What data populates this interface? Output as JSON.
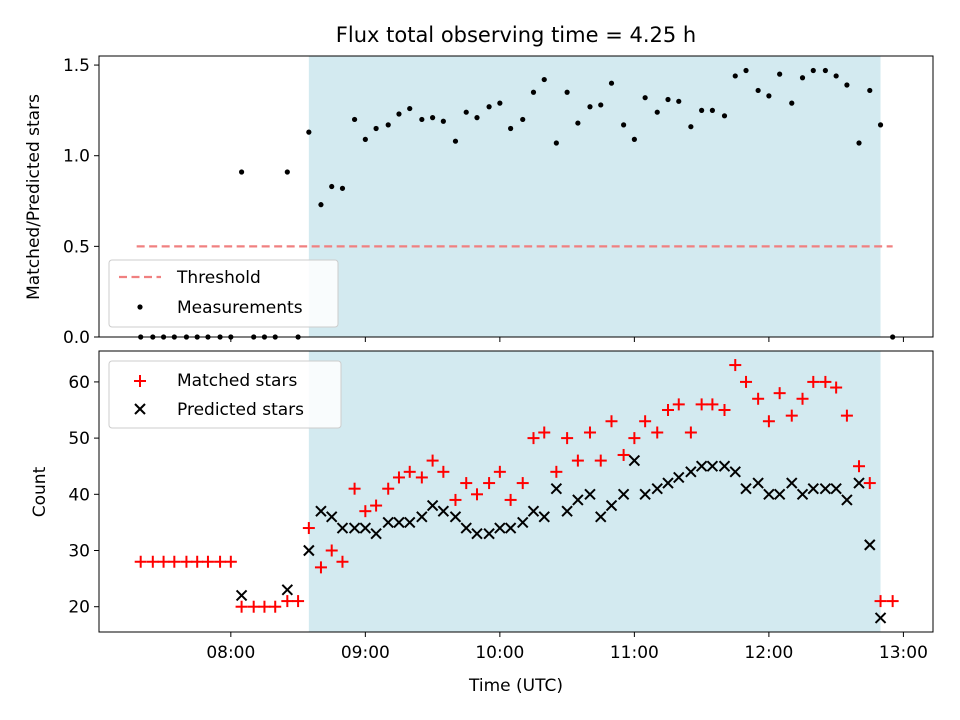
{
  "chart_data": [
    {
      "type": "scatter",
      "title": "Flux total observing time = 4.25 h",
      "ylabel": "Matched/Predicted stars",
      "xlabel": "",
      "xlim": [
        7.02,
        13.22
      ],
      "ylim": [
        0,
        1.55
      ],
      "x_ticks": [
        8,
        9,
        10,
        11,
        12,
        13
      ],
      "y_ticks": [
        0,
        0.5,
        1.0,
        1.5
      ],
      "y_tick_labels": [
        "0.0",
        "0.5",
        "1.0",
        "1.5"
      ],
      "shaded_interval": [
        8.58,
        12.83
      ],
      "shade_color": "#d3eaf0",
      "threshold": {
        "name": "Threshold",
        "value": 0.5,
        "x_range": [
          7.3,
          12.92
        ],
        "color": "#f08080"
      },
      "legend": {
        "position": "lower-left",
        "entries": [
          "Threshold",
          "Measurements"
        ]
      },
      "series": [
        {
          "name": "Measurements",
          "marker": "dot",
          "color": "#000000",
          "x": [
            7.33,
            7.42,
            7.5,
            7.58,
            7.67,
            7.75,
            7.83,
            7.92,
            8.0,
            8.08,
            8.17,
            8.25,
            8.33,
            8.42,
            8.5,
            8.58,
            8.67,
            8.75,
            8.83,
            8.92,
            9.0,
            9.08,
            9.17,
            9.25,
            9.33,
            9.42,
            9.5,
            9.58,
            9.67,
            9.75,
            9.83,
            9.92,
            10.0,
            10.08,
            10.17,
            10.25,
            10.33,
            10.42,
            10.5,
            10.58,
            10.67,
            10.75,
            10.83,
            10.92,
            11.0,
            11.08,
            11.17,
            11.25,
            11.33,
            11.42,
            11.5,
            11.58,
            11.67,
            11.75,
            11.83,
            11.92,
            12.0,
            12.08,
            12.17,
            12.25,
            12.33,
            12.42,
            12.5,
            12.58,
            12.67,
            12.75,
            12.83,
            12.92
          ],
          "y": [
            0,
            0,
            0,
            0,
            0,
            0,
            0,
            0,
            0,
            0.91,
            0,
            0,
            0,
            0.91,
            0,
            1.13,
            0.73,
            0.83,
            0.82,
            1.2,
            1.09,
            1.15,
            1.17,
            1.23,
            1.26,
            1.2,
            1.21,
            1.19,
            1.08,
            1.24,
            1.21,
            1.27,
            1.29,
            1.15,
            1.2,
            1.35,
            1.42,
            1.07,
            1.35,
            1.18,
            1.27,
            1.28,
            1.4,
            1.17,
            1.09,
            1.32,
            1.24,
            1.31,
            1.3,
            1.16,
            1.25,
            1.25,
            1.22,
            1.44,
            1.47,
            1.36,
            1.33,
            1.45,
            1.29,
            1.43,
            1.47,
            1.47,
            1.44,
            1.39,
            1.07,
            1.36,
            1.17,
            0
          ]
        }
      ]
    },
    {
      "type": "scatter",
      "title": "",
      "ylabel": "Count",
      "xlabel": "Time (UTC)",
      "xlim": [
        7.02,
        13.22
      ],
      "ylim": [
        15.5,
        65.5
      ],
      "x_ticks": [
        8,
        9,
        10,
        11,
        12,
        13
      ],
      "x_tick_labels": [
        "08:00",
        "09:00",
        "10:00",
        "11:00",
        "12:00",
        "13:00"
      ],
      "y_ticks": [
        20,
        30,
        40,
        50,
        60
      ],
      "y_tick_labels": [
        "20",
        "30",
        "40",
        "50",
        "60"
      ],
      "shaded_interval": [
        8.58,
        12.83
      ],
      "shade_color": "#d3eaf0",
      "legend": {
        "position": "top-left",
        "entries": [
          "Matched stars",
          "Predicted stars"
        ]
      },
      "series": [
        {
          "name": "Matched stars",
          "marker": "plus",
          "color": "#ff0000",
          "x": [
            7.33,
            7.42,
            7.5,
            7.58,
            7.67,
            7.75,
            7.83,
            7.92,
            8.0,
            8.08,
            8.17,
            8.25,
            8.33,
            8.42,
            8.5,
            8.58,
            8.67,
            8.75,
            8.83,
            8.92,
            9.0,
            9.08,
            9.17,
            9.25,
            9.33,
            9.42,
            9.5,
            9.58,
            9.67,
            9.75,
            9.83,
            9.92,
            10.0,
            10.08,
            10.17,
            10.25,
            10.33,
            10.42,
            10.5,
            10.58,
            10.67,
            10.75,
            10.83,
            10.92,
            11.0,
            11.08,
            11.17,
            11.25,
            11.33,
            11.42,
            11.5,
            11.58,
            11.67,
            11.75,
            11.83,
            11.92,
            12.0,
            12.08,
            12.17,
            12.25,
            12.33,
            12.42,
            12.5,
            12.58,
            12.67,
            12.75,
            12.83,
            12.92
          ],
          "y": [
            28,
            28,
            28,
            28,
            28,
            28,
            28,
            28,
            28,
            20,
            20,
            20,
            20,
            21,
            21,
            34,
            27,
            30,
            28,
            41,
            37,
            38,
            41,
            43,
            44,
            43,
            46,
            44,
            39,
            42,
            40,
            42,
            44,
            39,
            42,
            50,
            51,
            44,
            50,
            46,
            51,
            46,
            53,
            47,
            50,
            53,
            51,
            55,
            56,
            51,
            56,
            56,
            55,
            63,
            60,
            57,
            53,
            58,
            54,
            57,
            60,
            60,
            59,
            54,
            45,
            42,
            21,
            21
          ]
        },
        {
          "name": "Predicted stars",
          "marker": "x",
          "color": "#000000",
          "x": [
            8.08,
            8.42,
            8.58,
            8.67,
            8.75,
            8.83,
            8.92,
            9.0,
            9.08,
            9.17,
            9.25,
            9.33,
            9.42,
            9.5,
            9.58,
            9.67,
            9.75,
            9.83,
            9.92,
            10.0,
            10.08,
            10.17,
            10.25,
            10.33,
            10.42,
            10.5,
            10.58,
            10.67,
            10.75,
            10.83,
            10.92,
            11.0,
            11.08,
            11.17,
            11.25,
            11.33,
            11.42,
            11.5,
            11.58,
            11.67,
            11.75,
            11.83,
            11.92,
            12.0,
            12.08,
            12.17,
            12.25,
            12.33,
            12.42,
            12.5,
            12.58,
            12.67,
            12.75,
            12.83
          ],
          "y": [
            22,
            23,
            30,
            37,
            36,
            34,
            34,
            34,
            33,
            35,
            35,
            35,
            36,
            38,
            37,
            36,
            34,
            33,
            33,
            34,
            34,
            35,
            37,
            36,
            41,
            37,
            39,
            40,
            36,
            38,
            40,
            46,
            40,
            41,
            42,
            43,
            44,
            45,
            45,
            45,
            44,
            41,
            42,
            40,
            40,
            42,
            40,
            41,
            41,
            41,
            39,
            42,
            31,
            18
          ]
        }
      ]
    }
  ]
}
